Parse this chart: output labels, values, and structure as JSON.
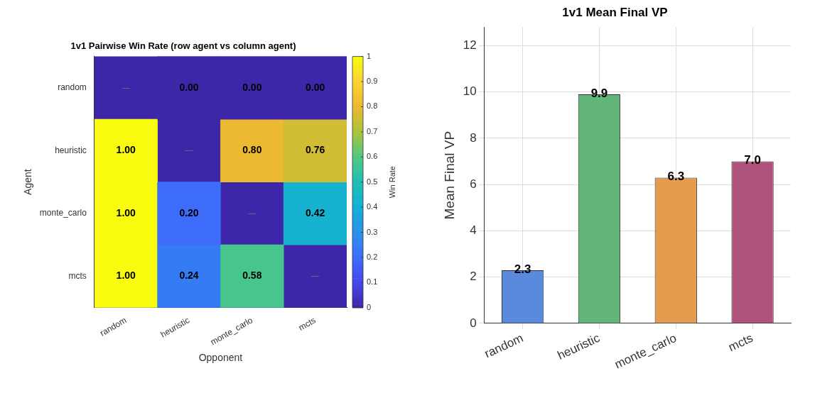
{
  "chart_data": [
    {
      "type": "heatmap",
      "title": "1v1 Pairwise Win Rate (row agent vs column agent)",
      "xlabel": "Opponent",
      "ylabel": "Agent",
      "clabel": "Win Rate",
      "categories": [
        "random",
        "heuristic",
        "monte_carlo",
        "mcts"
      ],
      "y_categories": [
        "random",
        "heuristic",
        "monte_carlo",
        "mcts"
      ],
      "cells": [
        [
          null,
          0,
          0,
          0
        ],
        [
          1,
          null,
          0.8,
          0.76
        ],
        [
          1,
          0.2,
          null,
          0.42
        ],
        [
          1,
          0.24,
          0.58,
          null
        ]
      ],
      "cell_labels": [
        [
          "—",
          "0.00",
          "0.00",
          "0.00"
        ],
        [
          "1.00",
          "—",
          "0.80",
          "0.76"
        ],
        [
          "1.00",
          "0.20",
          "—",
          "0.42"
        ],
        [
          "1.00",
          "0.24",
          "0.58",
          "—"
        ]
      ],
      "clim": [
        0,
        1
      ],
      "cticks": [
        0,
        0.1,
        0.2,
        0.3,
        0.4,
        0.5,
        0.6,
        0.7,
        0.8,
        0.9,
        1
      ]
    },
    {
      "type": "bar",
      "title": "1v1 Mean Final VP",
      "ylabel": "Mean Final VP",
      "categories": [
        "random",
        "heuristic",
        "monte_carlo",
        "mcts"
      ],
      "values": [
        2.3,
        9.9,
        6.3,
        7.0
      ],
      "value_labels": [
        "2.3",
        "9.9",
        "6.3",
        "7.0"
      ],
      "colors": [
        "#5a8ade",
        "#62b679",
        "#e39c4d",
        "#b0537c"
      ],
      "ylim": [
        0,
        12.8
      ],
      "yticks": [
        0,
        2,
        4,
        6,
        8,
        10,
        12
      ],
      "grid": true
    }
  ]
}
